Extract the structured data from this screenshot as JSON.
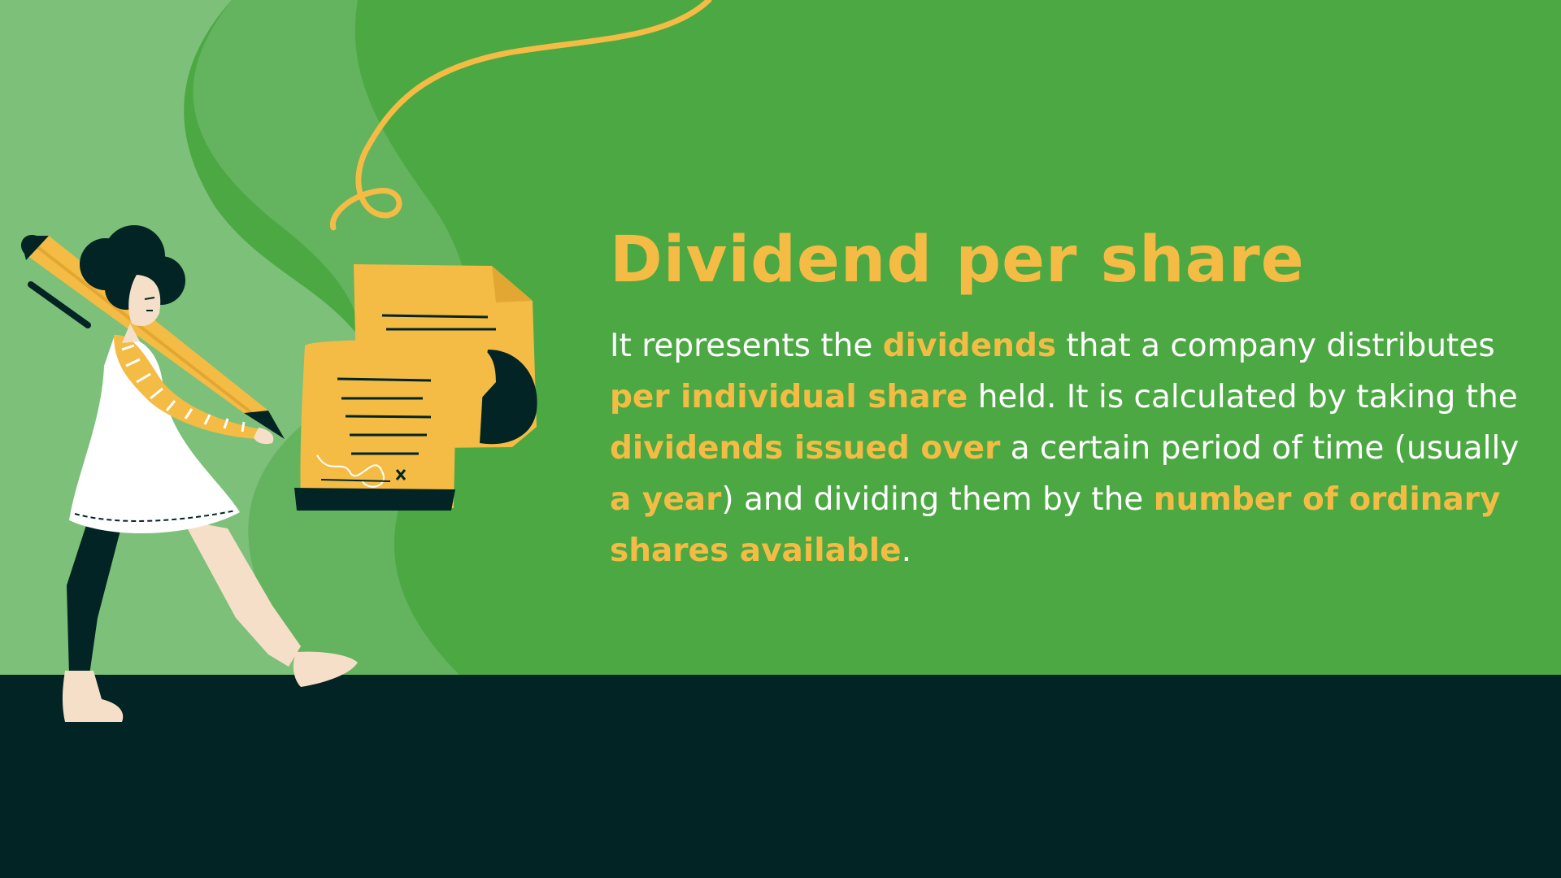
{
  "slide": {
    "title": "Dividend per share",
    "paragraph": [
      {
        "text": "It represents the ",
        "highlight": false
      },
      {
        "text": "dividends",
        "highlight": true
      },
      {
        "text": " that a company distributes ",
        "highlight": false
      },
      {
        "text": "per individual share",
        "highlight": true
      },
      {
        "text": " held. It is calculated by taking the ",
        "highlight": false
      },
      {
        "text": "dividends issued over",
        "highlight": true
      },
      {
        "text": " a certain period of time (usually ",
        "highlight": false
      },
      {
        "text": "a year",
        "highlight": true
      },
      {
        "text": ") and dividing them by the ",
        "highlight": false
      },
      {
        "text": "number of ordinary shares available",
        "highlight": true
      },
      {
        "text": ".",
        "highlight": false
      }
    ]
  },
  "colors": {
    "background_green": "#4ca843",
    "wave_light": "#7cc079",
    "wave_mid": "#63b35f",
    "floor_dark": "#022424",
    "accent_yellow": "#f4bc44",
    "body_text": "#ffffff"
  },
  "illustration": {
    "icons": [
      "woman-with-giant-pencil-icon",
      "signed-contract-scroll-icon",
      "curly-line-icon"
    ]
  }
}
